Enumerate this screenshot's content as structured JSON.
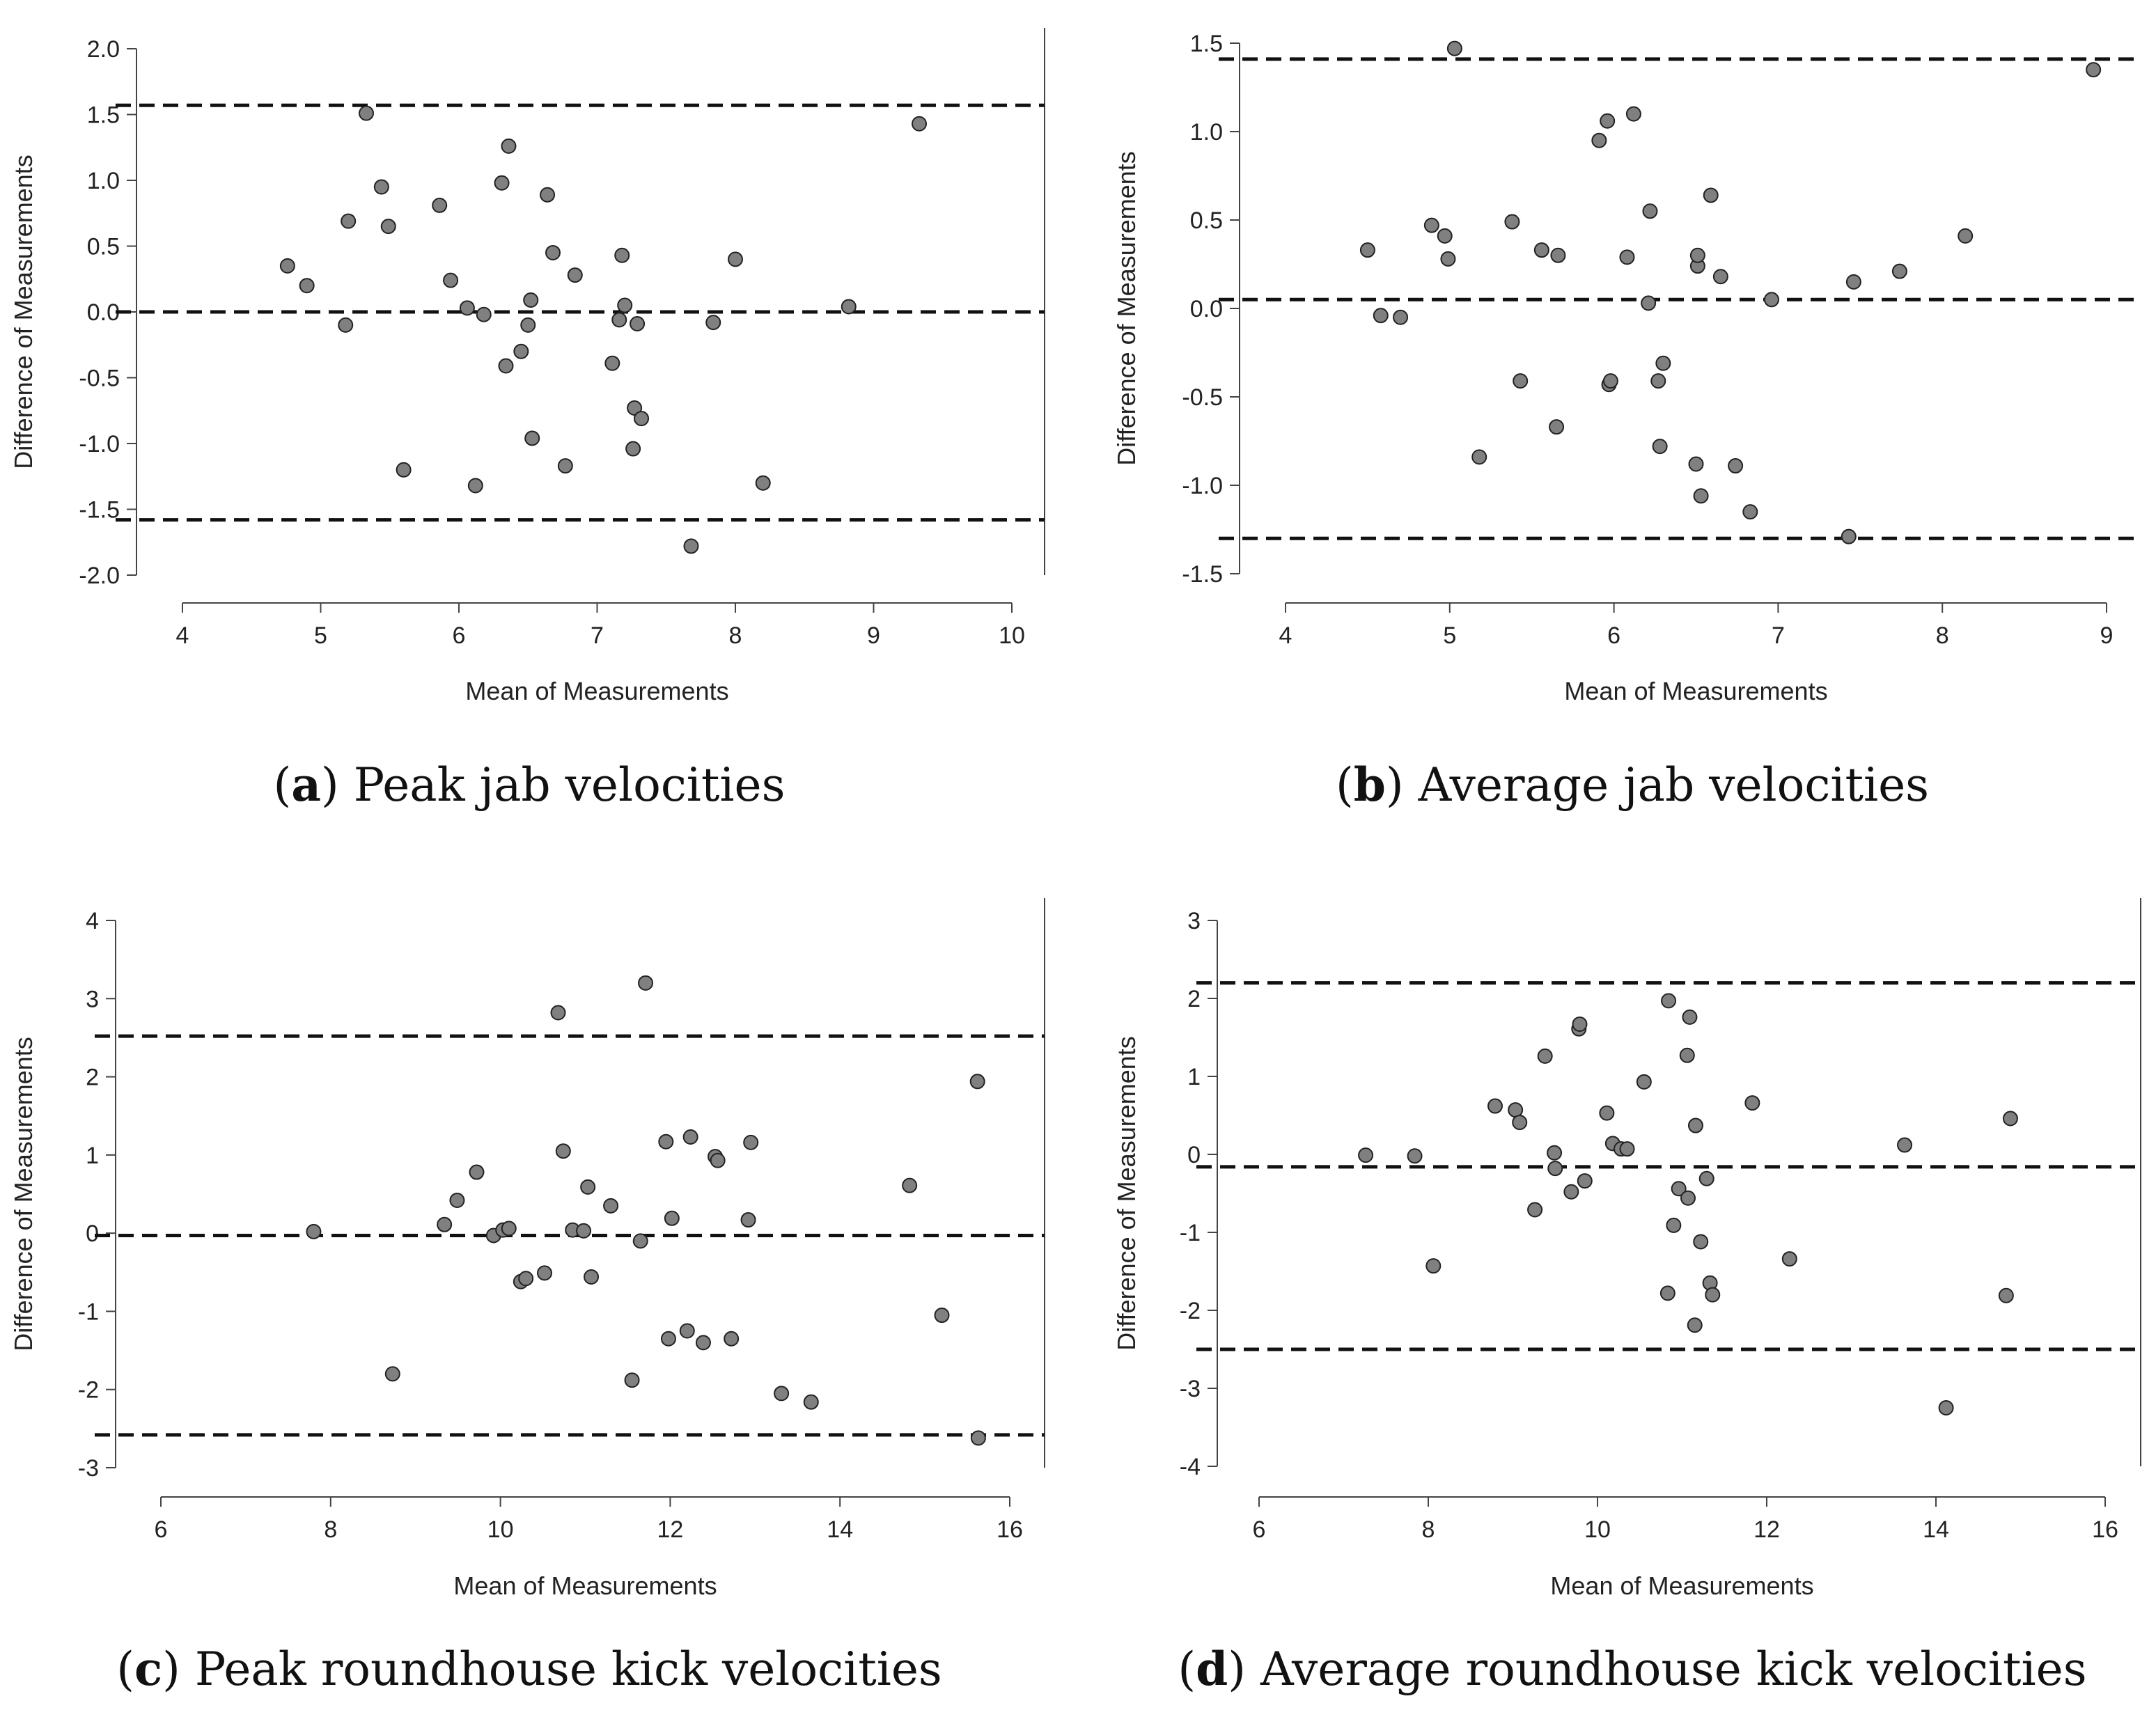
{
  "figure": {
    "panels": [
      {
        "letter": "a",
        "caption": "Peak jab velocities"
      },
      {
        "letter": "b",
        "caption": "Average jab velocities"
      },
      {
        "letter": "c",
        "caption": "Peak roundhouse kick velocities"
      },
      {
        "letter": "d",
        "caption": "Average roundhouse kick velocities"
      }
    ]
  },
  "colors": {
    "point_fill": "#808080",
    "point_stroke": "#222222",
    "axis": "#444444",
    "line": "#111111"
  },
  "chart_data": [
    {
      "type": "scatter",
      "title": "Peak jab velocities",
      "xlabel": "Mean of Measurements",
      "ylabel": "Difference of Measurements",
      "xlim": [
        4,
        10
      ],
      "ylim": [
        -2.0,
        2.0
      ],
      "xticks": [
        4,
        5,
        6,
        7,
        8,
        9,
        10
      ],
      "xtick_labels": [
        "4",
        "5",
        "6",
        "7",
        "8",
        "9",
        "10"
      ],
      "yticks": [
        -2.0,
        -1.5,
        -1.0,
        -0.5,
        0.0,
        0.5,
        1.0,
        1.5,
        2.0
      ],
      "ytick_labels": [
        "-2.0",
        "-1.5",
        "-1.0",
        "-0.5",
        "0.0",
        "0.5",
        "1.0",
        "1.5",
        "2.0"
      ],
      "mean_difference": 0.0,
      "limits_of_agreement": [
        -1.58,
        1.57
      ],
      "x": [
        4.76,
        4.9,
        5.18,
        5.2,
        5.33,
        5.44,
        5.49,
        5.6,
        5.86,
        5.94,
        6.06,
        6.18,
        6.31,
        6.34,
        6.36,
        6.12,
        6.45,
        6.5,
        6.52,
        6.53,
        6.64,
        6.68,
        6.77,
        6.84,
        7.11,
        7.16,
        7.18,
        7.2,
        7.27,
        7.26,
        7.29,
        7.32,
        7.68,
        7.84,
        8.0,
        8.2,
        8.82,
        9.33
      ],
      "y": [
        0.35,
        0.2,
        -0.1,
        0.69,
        1.51,
        0.95,
        0.65,
        -1.2,
        0.81,
        0.24,
        0.03,
        -0.02,
        0.98,
        -0.41,
        1.26,
        -1.32,
        -0.3,
        -0.1,
        0.09,
        -0.96,
        0.89,
        0.45,
        -1.17,
        0.28,
        -0.39,
        -0.06,
        0.43,
        0.05,
        -0.73,
        -1.04,
        -0.09,
        -0.81,
        -1.78,
        -0.08,
        0.4,
        -1.3,
        0.04,
        1.43
      ]
    },
    {
      "type": "scatter",
      "title": "Average jab velocities",
      "xlabel": "Mean of Measurements",
      "ylabel": "Difference of Measurements",
      "xlim": [
        4,
        9
      ],
      "ylim": [
        -1.5,
        1.5
      ],
      "xticks": [
        4,
        5,
        6,
        7,
        8,
        9
      ],
      "xtick_labels": [
        "4",
        "5",
        "6",
        "7",
        "8",
        "9"
      ],
      "yticks": [
        -1.5,
        -1.0,
        -0.5,
        0.0,
        0.5,
        1.0,
        1.5
      ],
      "ytick_labels": [
        "-1.5",
        "-1.0",
        "-0.5",
        "0.0",
        "0.5",
        "1.0",
        "1.5"
      ],
      "mean_difference": 0.05,
      "limits_of_agreement": [
        -1.3,
        1.41
      ],
      "x": [
        4.5,
        4.58,
        4.7,
        4.89,
        4.97,
        4.99,
        5.03,
        5.18,
        5.38,
        5.43,
        5.56,
        5.65,
        5.66,
        5.91,
        5.96,
        5.97,
        5.98,
        6.08,
        6.12,
        6.21,
        6.22,
        6.27,
        6.28,
        6.3,
        6.5,
        6.51,
        6.51,
        6.53,
        6.59,
        6.65,
        6.74,
        6.83,
        6.96,
        7.43,
        7.46,
        7.74,
        8.14,
        8.92
      ],
      "y": [
        0.33,
        -0.04,
        -0.05,
        0.47,
        0.41,
        0.28,
        1.47,
        -0.84,
        0.49,
        -0.41,
        0.33,
        -0.67,
        0.3,
        0.95,
        1.06,
        -0.43,
        -0.41,
        0.29,
        1.1,
        0.03,
        0.55,
        -0.41,
        -0.78,
        -0.31,
        -0.88,
        0.24,
        0.3,
        -1.06,
        0.64,
        0.18,
        -0.89,
        -1.15,
        0.05,
        -1.29,
        0.15,
        0.21,
        0.41,
        1.35
      ]
    },
    {
      "type": "scatter",
      "title": "Peak roundhouse kick velocities",
      "xlabel": "Mean of Measurements",
      "ylabel": "Difference of Measurements",
      "xlim": [
        6,
        16
      ],
      "ylim": [
        -3,
        4
      ],
      "xticks": [
        6,
        8,
        10,
        12,
        14,
        16
      ],
      "xtick_labels": [
        "6",
        "8",
        "10",
        "12",
        "14",
        "16"
      ],
      "yticks": [
        -3,
        -2,
        -1,
        0,
        1,
        2,
        3,
        4
      ],
      "ytick_labels": [
        "-3",
        "-2",
        "-1",
        "0",
        "1",
        "2",
        "3",
        "4"
      ],
      "mean_difference": -0.03,
      "limits_of_agreement": [
        -2.58,
        2.52
      ],
      "x": [
        7.8,
        8.73,
        9.34,
        9.49,
        9.72,
        9.92,
        10.03,
        10.1,
        10.24,
        10.3,
        10.52,
        10.68,
        10.74,
        10.85,
        10.98,
        11.03,
        11.07,
        11.3,
        11.55,
        11.65,
        11.71,
        11.95,
        11.98,
        12.02,
        12.2,
        12.24,
        12.39,
        12.53,
        12.56,
        12.72,
        12.92,
        12.95,
        13.31,
        13.66,
        14.82,
        15.2,
        15.62,
        15.63
      ],
      "y": [
        0.02,
        -1.8,
        0.11,
        0.42,
        0.78,
        -0.03,
        0.04,
        0.06,
        -0.62,
        -0.58,
        -0.51,
        2.82,
        1.05,
        0.04,
        0.03,
        0.59,
        -0.56,
        0.35,
        -1.88,
        -0.1,
        3.2,
        1.17,
        -1.35,
        0.19,
        -1.25,
        1.23,
        -1.4,
        0.98,
        0.93,
        -1.35,
        0.17,
        1.16,
        -2.05,
        -2.16,
        0.61,
        -1.05,
        1.94,
        -2.62
      ]
    },
    {
      "type": "scatter",
      "title": "Average roundhouse kick velocities",
      "xlabel": "Mean of Measurements",
      "ylabel": "Difference of Measurements",
      "xlim": [
        6,
        16
      ],
      "ylim": [
        -4,
        3
      ],
      "xticks": [
        6,
        8,
        10,
        12,
        14,
        16
      ],
      "xtick_labels": [
        "6",
        "8",
        "10",
        "12",
        "14",
        "16"
      ],
      "yticks": [
        -4,
        -3,
        -2,
        -1,
        0,
        1,
        2,
        3
      ],
      "ytick_labels": [
        "-4",
        "-3",
        "-2",
        "-1",
        "0",
        "1",
        "2",
        "3"
      ],
      "mean_difference": -0.16,
      "limits_of_agreement": [
        -2.5,
        2.2
      ],
      "x": [
        7.26,
        7.84,
        8.06,
        8.79,
        9.03,
        9.08,
        9.26,
        9.38,
        9.49,
        9.5,
        9.69,
        9.78,
        9.79,
        9.85,
        10.11,
        10.18,
        10.28,
        10.35,
        10.55,
        10.83,
        10.84,
        10.9,
        10.96,
        11.06,
        11.07,
        11.09,
        11.15,
        11.16,
        11.22,
        11.29,
        11.33,
        11.36,
        11.83,
        12.27,
        13.63,
        14.12,
        14.83,
        14.88
      ],
      "y": [
        -0.01,
        -0.02,
        -1.43,
        0.62,
        0.57,
        0.41,
        -0.71,
        1.26,
        0.02,
        -0.18,
        -0.48,
        1.61,
        1.67,
        -0.34,
        0.53,
        0.14,
        0.07,
        0.07,
        0.93,
        -1.78,
        1.97,
        -0.91,
        -0.44,
        1.27,
        -0.56,
        1.76,
        -2.19,
        0.37,
        -1.12,
        -0.31,
        -1.65,
        -1.8,
        0.66,
        -1.34,
        0.12,
        -3.25,
        -1.81,
        0.46
      ]
    }
  ]
}
